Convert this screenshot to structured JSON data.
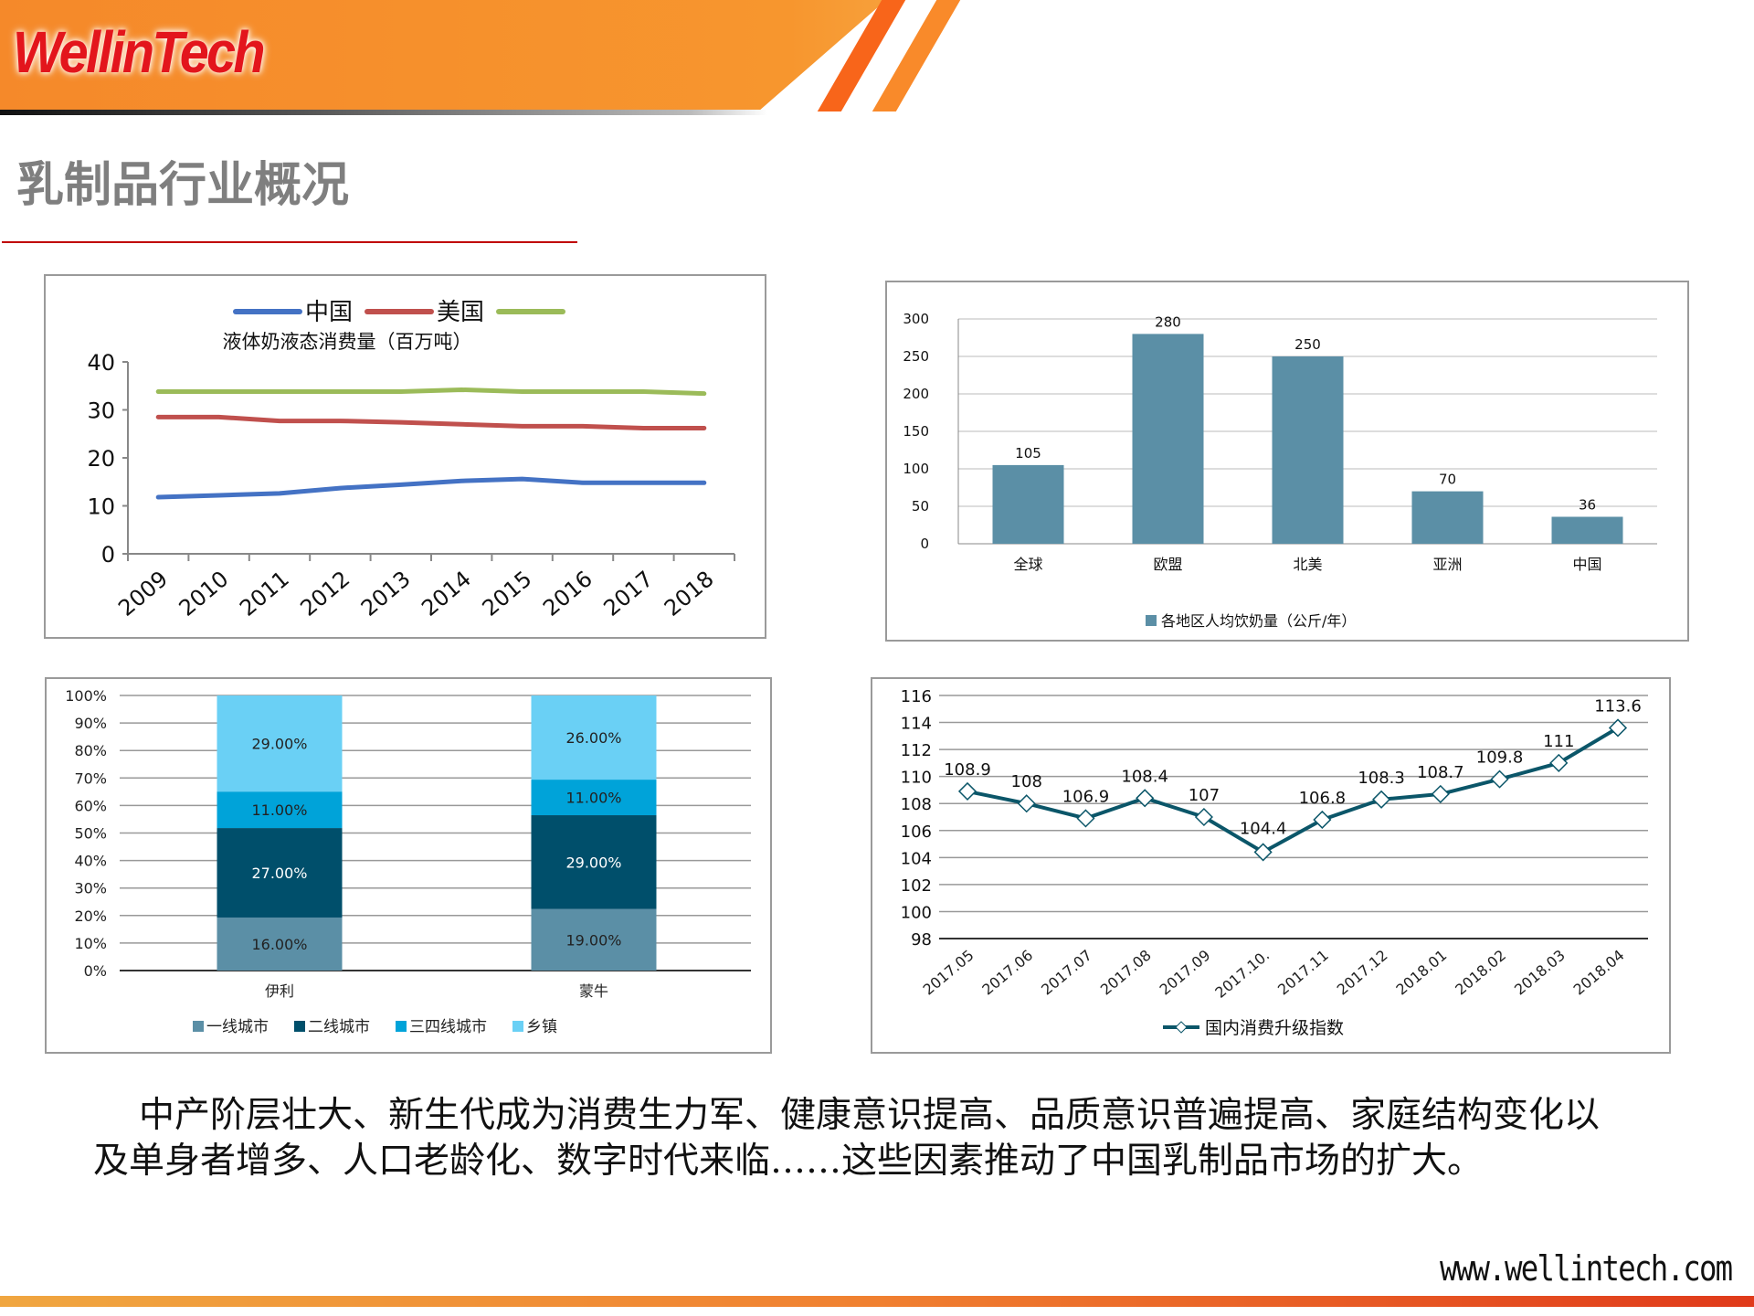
{
  "header": {
    "logo_text": "WellinTech",
    "brand_color": "#e3151c"
  },
  "page_title": "乳制品行业概况",
  "body_text": "中产阶层壮大、新生代成为消费生力军、健康意识提高、品质意识普遍提高、家庭结构变化以及单身者增多、人口老龄化、数字时代来临……这些因素推动了中国乳制品市场的扩大。",
  "footer": {
    "url": "www.wellintech.com"
  },
  "chart_data": [
    {
      "type": "line",
      "title": "液体奶液态消费量（百万吨）",
      "categories": [
        "2009",
        "2010",
        "2011",
        "2012",
        "2013",
        "2014",
        "2015",
        "2016",
        "2017",
        "2018"
      ],
      "ylim": [
        0,
        40
      ],
      "yticks": [
        "0",
        "10",
        "20",
        "30",
        "40"
      ],
      "legend_position": "top",
      "grid": false,
      "series": [
        {
          "name": "中国",
          "color": "#4472c4",
          "values": [
            11.8,
            12.2,
            12.6,
            13.7,
            14.4,
            15.2,
            15.6,
            14.8,
            14.8,
            14.8
          ]
        },
        {
          "name": "美国",
          "color": "#c0504d",
          "values": [
            28.5,
            28.5,
            27.7,
            27.7,
            27.4,
            27.0,
            26.6,
            26.6,
            26.2,
            26.2
          ]
        },
        {
          "name": "",
          "color": "#9bbb59",
          "values": [
            33.8,
            33.8,
            33.8,
            33.8,
            33.8,
            34.2,
            33.8,
            33.8,
            33.8,
            33.4
          ]
        }
      ]
    },
    {
      "type": "bar",
      "categories": [
        "全球",
        "欧盟",
        "北美",
        "亚洲",
        "中国"
      ],
      "values": [
        105,
        280,
        250,
        70,
        36
      ],
      "ylim": [
        0,
        300
      ],
      "yticks": [
        "0",
        "50",
        "100",
        "150",
        "200",
        "250",
        "300"
      ],
      "legend": "各地区人均饮奶量（公斤/年）",
      "legend_position": "bottom",
      "color": "#5b8fa6",
      "grid": true
    },
    {
      "type": "bar",
      "stacked": true,
      "categories": [
        "伊利",
        "蒙牛"
      ],
      "ylim": [
        0,
        100
      ],
      "yticks": [
        "0%",
        "10%",
        "20%",
        "30%",
        "40%",
        "50%",
        "60%",
        "70%",
        "80%",
        "90%",
        "100%"
      ],
      "legend_position": "bottom",
      "grid": true,
      "series": [
        {
          "name": "一线城市",
          "color": "#5b8fa6",
          "values": [
            16,
            19
          ],
          "labels": [
            "16.00%",
            "19.00%"
          ]
        },
        {
          "name": "二线城市",
          "color": "#004f6b",
          "values": [
            27,
            29
          ],
          "labels": [
            "27.00%",
            "29.00%"
          ]
        },
        {
          "name": "三四线城市",
          "color": "#00a3d9",
          "values": [
            11,
            11
          ],
          "labels": [
            "11.00%",
            "11.00%"
          ]
        },
        {
          "name": "乡镇",
          "color": "#6ad0f5",
          "values": [
            29,
            26
          ],
          "labels": [
            "29.00%",
            "26.00%"
          ]
        }
      ]
    },
    {
      "type": "line",
      "categories": [
        "2017.05",
        "2017.06",
        "2017.07",
        "2017.08",
        "2017.09",
        "2017.10.",
        "2017.11",
        "2017.12",
        "2018.01",
        "2018.02",
        "2018.03",
        "2018.04"
      ],
      "ylim": [
        98,
        116
      ],
      "yticks": [
        "98",
        "100",
        "102",
        "104",
        "106",
        "108",
        "110",
        "112",
        "114",
        "116"
      ],
      "legend_position": "bottom",
      "grid": true,
      "series": [
        {
          "name": "国内消费升级指数",
          "color": "#0b5669",
          "marker": "diamond",
          "values": [
            108.9,
            108,
            106.9,
            108.4,
            107,
            104.4,
            106.8,
            108.3,
            108.7,
            109.8,
            111,
            113.6
          ],
          "labels": [
            "108.9",
            "108",
            "106.9",
            "108.4",
            "107",
            "104.4",
            "106.8",
            "108.3",
            "108.7",
            "109.8",
            "111",
            "113.6"
          ]
        }
      ]
    }
  ]
}
